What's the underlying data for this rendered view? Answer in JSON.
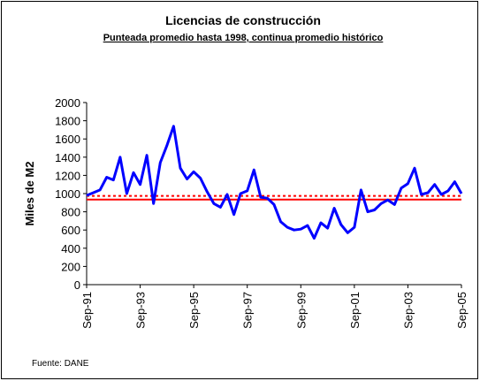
{
  "chart_data": {
    "type": "line",
    "title": "Licencias de construcción",
    "subtitle": "Punteada promedio hasta 1998, continua promedio histórico",
    "y_label": "Miles de M2",
    "source": "Fuente: DANE",
    "categories": [
      "Sep-91",
      null,
      null,
      null,
      null,
      null,
      null,
      null,
      "Sep-93",
      null,
      null,
      null,
      null,
      null,
      null,
      null,
      "Sep-95",
      null,
      null,
      null,
      null,
      null,
      null,
      null,
      "Sep-97",
      null,
      null,
      null,
      null,
      null,
      null,
      null,
      "Sep-99",
      null,
      null,
      null,
      null,
      null,
      null,
      null,
      "Sep-01",
      null,
      null,
      null,
      null,
      null,
      null,
      null,
      "Sep-03",
      null,
      null,
      null,
      null,
      null,
      null,
      null,
      "Sep-05"
    ],
    "series": [
      {
        "color": "#0000ff",
        "values": [
          980,
          1010,
          1040,
          1180,
          1150,
          1400,
          1000,
          1230,
          1100,
          1420,
          890,
          1340,
          1530,
          1740,
          1280,
          1160,
          1240,
          1170,
          1020,
          890,
          850,
          990,
          770,
          1000,
          1030,
          1260,
          960,
          950,
          880,
          690,
          630,
          600,
          610,
          650,
          510,
          680,
          620,
          840,
          660,
          570,
          630,
          1040,
          800,
          820,
          890,
          930,
          880,
          1060,
          1110,
          1280,
          990,
          1010,
          1100,
          990,
          1030,
          1130,
          1000
        ]
      }
    ],
    "reference_lines": [
      {
        "value": 975,
        "color": "#ff0000",
        "style": "dotted"
      },
      {
        "value": 935,
        "color": "#ff0000",
        "style": "solid"
      }
    ],
    "ylim": [
      0,
      2000
    ],
    "yticks": [
      0,
      200,
      400,
      600,
      800,
      1000,
      1200,
      1400,
      1600,
      1800,
      2000
    ],
    "grid": false
  }
}
